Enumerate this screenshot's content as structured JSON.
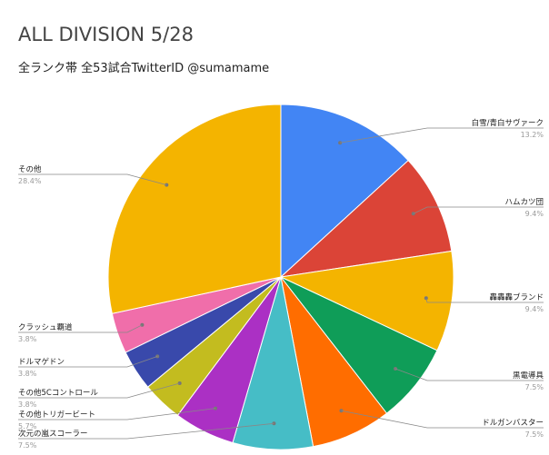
{
  "chart_data": {
    "type": "pie",
    "title": "ALL DIVISION 5/28",
    "subtitle": "全ランク帯 全53試合TwitterID @sumamame",
    "slices": [
      {
        "label": "白雪/青白サヴァーク",
        "pct_label": "13.2%",
        "value": 13.2,
        "color": "#4285F4"
      },
      {
        "label": "ハムカツ団",
        "pct_label": "9.4%",
        "value": 9.4,
        "color": "#DB4437"
      },
      {
        "label": "轟轟轟ブランド",
        "pct_label": "9.4%",
        "value": 9.4,
        "color": "#F4B400"
      },
      {
        "label": "黒電導具",
        "pct_label": "7.5%",
        "value": 7.5,
        "color": "#0F9D58"
      },
      {
        "label": "ドルガンバスター",
        "pct_label": "7.5%",
        "value": 7.5,
        "color": "#FF6D00"
      },
      {
        "label": "次元の嵐スコーラー",
        "pct_label": "7.5%",
        "value": 7.5,
        "color": "#46BDC6"
      },
      {
        "label": "その他トリガービート",
        "pct_label": "5.7%",
        "value": 5.7,
        "color": "#AB30C4"
      },
      {
        "label": "その他5Cコントロール",
        "pct_label": "3.8%",
        "value": 3.8,
        "color": "#C3BC1F"
      },
      {
        "label": "ドルマゲドン",
        "pct_label": "3.8%",
        "value": 3.8,
        "color": "#3949AB"
      },
      {
        "label": "クラッシュ覇道",
        "pct_label": "3.8%",
        "value": 3.8,
        "color": "#F06EAA"
      },
      {
        "label": "その他",
        "pct_label": "28.4%",
        "value": 28.4,
        "color": "#F4B400"
      }
    ]
  }
}
